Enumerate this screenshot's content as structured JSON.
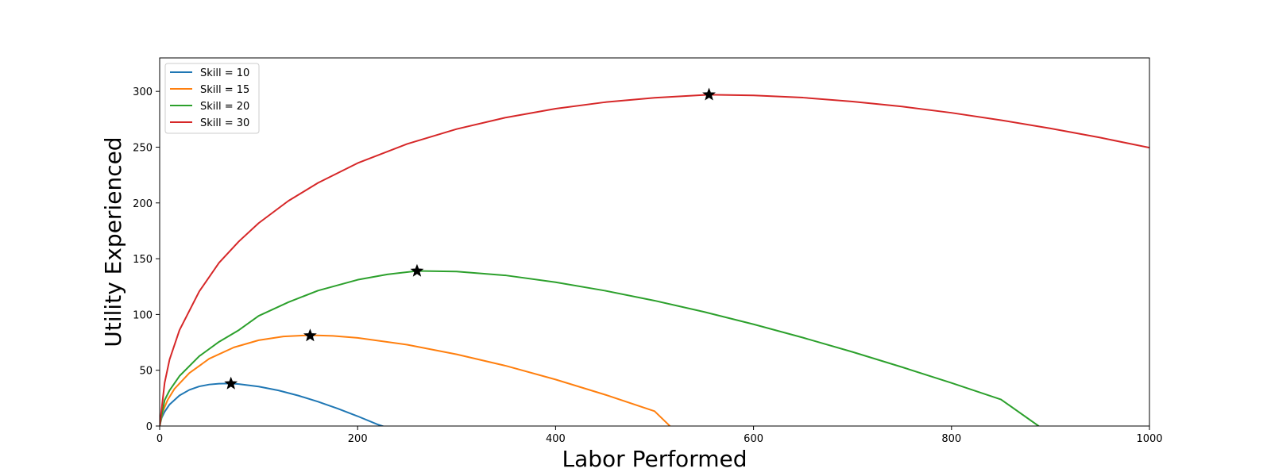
{
  "chart_data": {
    "type": "line",
    "title": "",
    "xlabel": "Labor Performed",
    "ylabel": "Utility Experienced",
    "xlim": [
      0,
      1000
    ],
    "ylim": [
      0,
      330
    ],
    "xticks": [
      0,
      200,
      400,
      600,
      800,
      1000
    ],
    "yticks": [
      0,
      50,
      100,
      150,
      200,
      250,
      300
    ],
    "grid": false,
    "legend_position": "top-left",
    "series": [
      {
        "name": "Skill = 10",
        "color": "#1f77b4",
        "x": [
          0,
          2,
          5,
          10,
          20,
          30,
          40,
          50,
          60,
          72,
          80,
          100,
          120,
          140,
          160,
          180,
          200,
          220,
          242
        ],
        "y": [
          0,
          7.2,
          12.8,
          19.3,
          27.4,
          32.4,
          35.5,
          37.2,
          38.0,
          38.1,
          37.6,
          35.4,
          31.9,
          27.3,
          21.8,
          15.6,
          8.8,
          1.5,
          -5.0
        ],
        "optimum": {
          "x": 72,
          "y": 38
        }
      },
      {
        "name": "Skill = 15",
        "color": "#ff7f0e",
        "x": [
          0,
          3,
          8,
          15,
          30,
          50,
          75,
          100,
          125,
          152,
          175,
          200,
          250,
          300,
          350,
          400,
          450,
          500,
          519
        ],
        "y": [
          0,
          12.5,
          23.3,
          33.4,
          47.5,
          60.3,
          70.5,
          76.9,
          80.3,
          81.4,
          80.8,
          79.0,
          72.9,
          64.3,
          53.9,
          41.7,
          28.1,
          13.3,
          -3.0
        ],
        "optimum": {
          "x": 152,
          "y": 81
        }
      },
      {
        "name": "Skill = 20",
        "color": "#2ca02c",
        "x": [
          0,
          5,
          10,
          20,
          40,
          60,
          80,
          100,
          130,
          160,
          200,
          230,
          260,
          300,
          350,
          400,
          450,
          500,
          550,
          600,
          650,
          700,
          750,
          800,
          850,
          888
        ],
        "y": [
          0,
          23.2,
          32.0,
          44.8,
          62.6,
          75.5,
          86.0,
          98.7,
          111.0,
          121.4,
          131.1,
          135.9,
          139.0,
          138.5,
          135.0,
          128.9,
          121.3,
          112.4,
          102.3,
          91.2,
          79.2,
          66.4,
          52.8,
          38.6,
          23.8,
          0
        ]
      },
      {
        "name": "Skill = 30",
        "color": "#d62728",
        "x": [
          0,
          5,
          10,
          20,
          40,
          60,
          80,
          100,
          130,
          160,
          200,
          250,
          300,
          350,
          400,
          450,
          500,
          555,
          600,
          650,
          700,
          750,
          800,
          850,
          900,
          950,
          1000
        ],
        "y": [
          0,
          38.6,
          59.6,
          85.9,
          120.7,
          146.4,
          165.5,
          181.9,
          201.8,
          218.0,
          235.7,
          252.9,
          266.2,
          276.6,
          284.5,
          290.3,
          294.3,
          297.0,
          296.4,
          294.4,
          290.9,
          286.4,
          280.8,
          274.2,
          266.8,
          258.6,
          249.5
        ]
      }
    ],
    "markers": [
      {
        "series": "Skill = 10",
        "x": 72,
        "y": 38
      },
      {
        "series": "Skill = 15",
        "x": 152,
        "y": 81
      },
      {
        "series": "Skill = 20",
        "x": 260,
        "y": 139
      },
      {
        "series": "Skill = 30",
        "x": 555,
        "y": 297
      }
    ]
  }
}
